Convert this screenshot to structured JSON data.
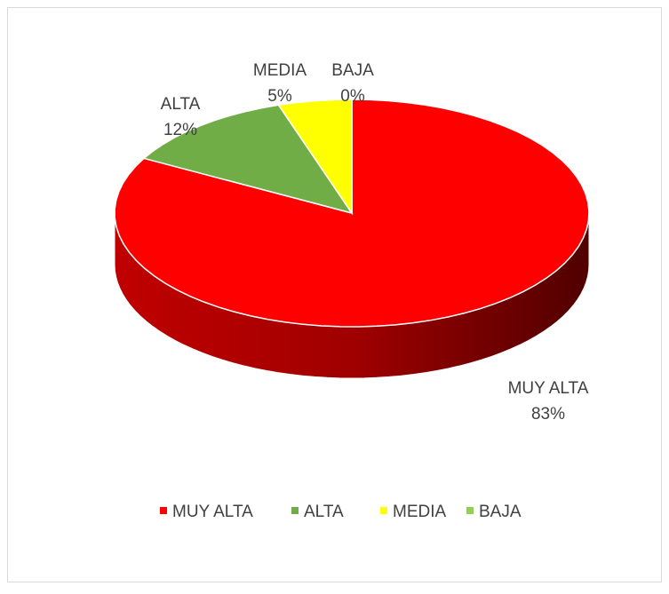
{
  "chart_data": {
    "type": "pie",
    "categories": [
      "MUY ALTA",
      "ALTA",
      "MEDIA",
      "BAJA"
    ],
    "values": [
      83,
      12,
      5,
      0
    ],
    "value_labels": [
      "83%",
      "12%",
      "5%",
      "0%"
    ],
    "colors": [
      "#ff0000",
      "#70ad47",
      "#ffff00",
      "#92d050"
    ],
    "legend": "bottom"
  }
}
